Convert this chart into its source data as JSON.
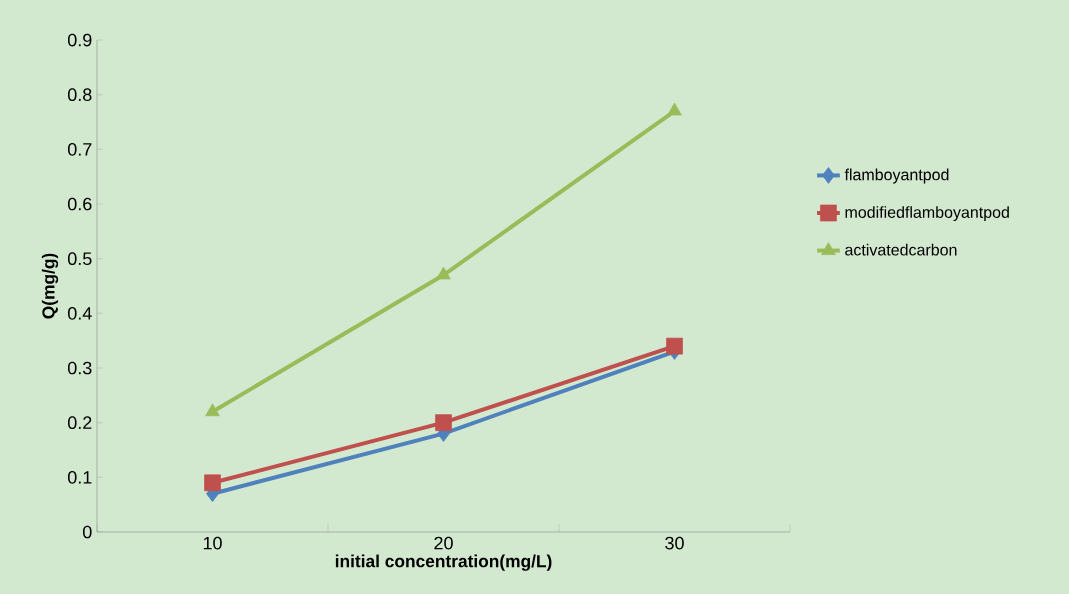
{
  "chart_data": {
    "type": "line",
    "xlabel": "initial concentration(mg/L)",
    "ylabel": "Q(mg/g)",
    "categories": [
      "10",
      "20",
      "30"
    ],
    "series": [
      {
        "name": "flamboyantpod",
        "color": "#4f81bd",
        "marker": "diamond",
        "values": [
          0.07,
          0.18,
          0.33
        ]
      },
      {
        "name": "modifiedflamboyantpod",
        "color": "#c0504d",
        "marker": "square",
        "values": [
          0.09,
          0.2,
          0.34
        ]
      },
      {
        "name": "activatedcarbon",
        "color": "#9bbb59",
        "marker": "triangle",
        "values": [
          0.22,
          0.47,
          0.77
        ]
      }
    ],
    "ylim": [
      0,
      0.9
    ],
    "yticks": [
      0,
      0.1,
      0.2,
      0.3,
      0.4,
      0.5,
      0.6,
      0.7,
      0.8,
      0.9
    ],
    "grid": false,
    "legend": "right",
    "line_style": "solid"
  }
}
